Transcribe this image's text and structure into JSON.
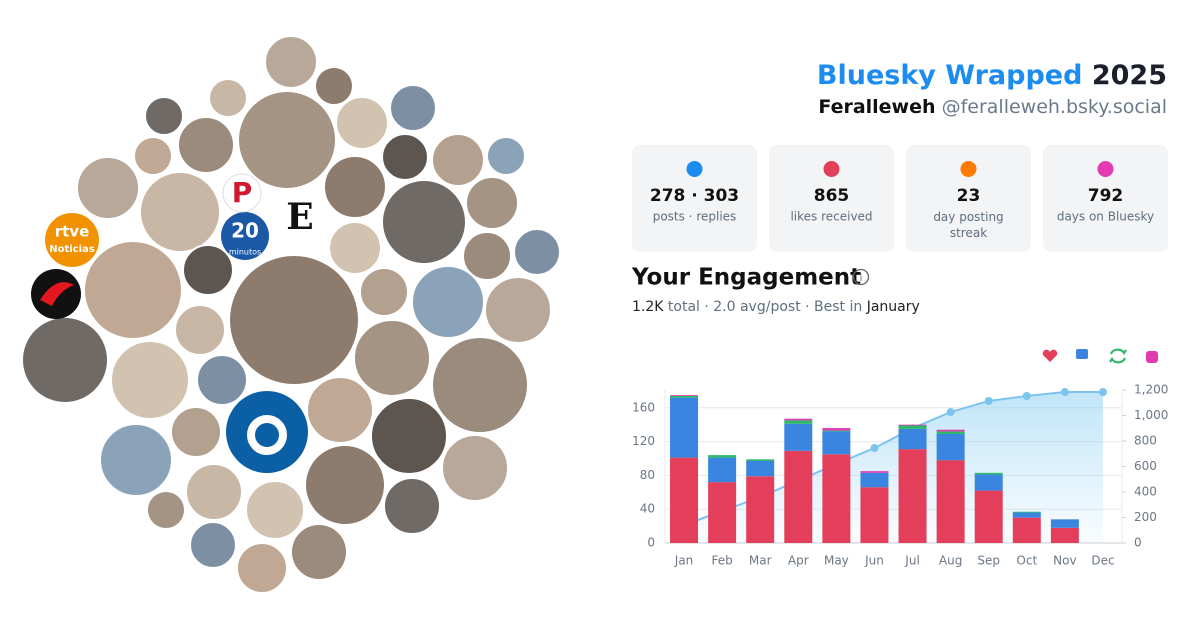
{
  "header": {
    "title": "Bluesky Wrapped",
    "year": "2025",
    "display_name": "Feralleweh",
    "handle": "@feralleweh.bsky.social"
  },
  "logos": [
    "rtve",
    "Noticias",
    "20",
    "minutos",
    "E",
    "P"
  ],
  "stats": [
    {
      "value": "278 · 303",
      "label": "posts · replies"
    },
    {
      "value": "865",
      "label": "likes received"
    },
    {
      "value": "23",
      "label": "day posting streak"
    },
    {
      "value": "792",
      "label": "days on Bluesky"
    }
  ],
  "engagement": {
    "title": "Your Engagement",
    "summary": [
      "1.2K",
      " total · 2.0 avg/post · Best in ",
      "January"
    ]
  },
  "chart_data": {
    "type": "bar",
    "stacked": true,
    "categories": [
      "Jan",
      "Feb",
      "Mar",
      "Apr",
      "May",
      "Jun",
      "Jul",
      "Aug",
      "Sep",
      "Oct",
      "Nov",
      "Dec"
    ],
    "series": [
      {
        "color": "#e33e5a",
        "values": [
          101,
          72,
          79,
          109,
          105,
          66,
          111,
          98,
          62,
          30,
          18,
          0
        ]
      },
      {
        "color": "#3a85e0",
        "values": [
          71,
          29,
          18,
          32,
          27,
          17,
          24,
          31,
          19,
          6,
          10,
          0
        ]
      },
      {
        "color": "#2eb86b",
        "values": [
          2,
          3,
          2,
          4,
          1,
          0,
          4,
          3,
          2,
          1,
          0,
          0
        ]
      },
      {
        "color": "#e23bb2",
        "values": [
          1,
          0,
          0,
          2,
          3,
          2,
          1,
          2,
          0,
          0,
          0,
          0
        ]
      },
      {
        "type": "line",
        "axis": "y2",
        "color": "#7cc4ee",
        "values": [
          141,
          250,
          360,
          490,
          620,
          745,
          900,
          1027,
          1114,
          1153,
          1184,
          1184
        ]
      }
    ],
    "ylim": [
      0,
      181
    ],
    "yticks": [
      0,
      40,
      80,
      120,
      160
    ],
    "y2lim": [
      0,
      1200
    ],
    "y2ticks": [
      0,
      200,
      400,
      600,
      800,
      {
        "value": 1000,
        "label": "1,000"
      },
      {
        "value": 1200,
        "label": "1,200"
      }
    ],
    "grid": true
  }
}
